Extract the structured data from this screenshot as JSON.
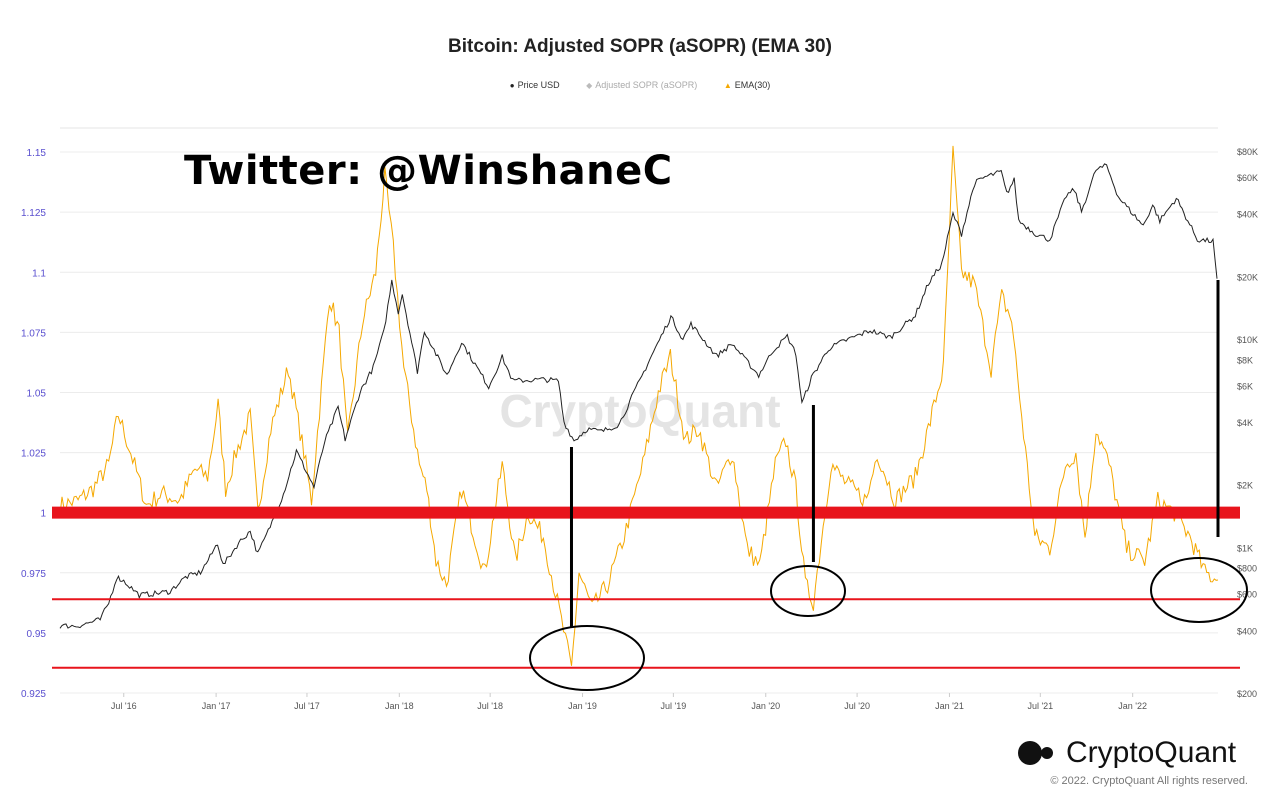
{
  "chart_data": {
    "type": "line",
    "title": "Bitcoin: Adjusted SOPR (aSOPR) (EMA 30)",
    "legend": [
      {
        "name": "Price USD",
        "color": "#222222",
        "marker": "circle"
      },
      {
        "name": "Adjusted SOPR (aSOPR)",
        "color": "#bbbbbb",
        "marker": "diamond"
      },
      {
        "name": "EMA(30)",
        "color": "#f5a800",
        "marker": "triangle"
      }
    ],
    "legend_position": "top-center",
    "watermark": "CryptoQuant",
    "x_ticks": [
      "Jul '16",
      "Jan '17",
      "Jul '17",
      "Jan '18",
      "Jul '18",
      "Jan '19",
      "Jul '19",
      "Jan '20",
      "Jul '20",
      "Jan '21",
      "Jul '21",
      "Jan '22"
    ],
    "x_range": [
      "2016-02-25",
      "2022-06-20"
    ],
    "y_left": {
      "ticks": [
        "1.15",
        "1.125",
        "1.1",
        "1.075",
        "1.05",
        "1.025",
        "1",
        "0.975",
        "0.95",
        "0.925"
      ],
      "range": [
        0.925,
        1.16
      ]
    },
    "y_right": {
      "scale": "log",
      "ticks": [
        {
          "label": "$80K",
          "value": 80000
        },
        {
          "label": "$60K",
          "value": 60000
        },
        {
          "label": "$40K",
          "value": 40000
        },
        {
          "label": "$20K",
          "value": 20000
        },
        {
          "label": "$10K",
          "value": 10000
        },
        {
          "label": "$8K",
          "value": 8000
        },
        {
          "label": "$6K",
          "value": 6000
        },
        {
          "label": "$4K",
          "value": 4000
        },
        {
          "label": "$2K",
          "value": 2000
        },
        {
          "label": "$1K",
          "value": 1000
        },
        {
          "label": "$800",
          "value": 800
        },
        {
          "label": "$600",
          "value": 600
        },
        {
          "label": "$400",
          "value": 400
        },
        {
          "label": "$200",
          "value": 200
        }
      ],
      "range": [
        200,
        80000
      ]
    },
    "series": [
      {
        "name": "Price USD",
        "axis": "right",
        "color": "#222222",
        "points": [
          [
            "2016-02-25",
            420
          ],
          [
            "2016-04-01",
            420
          ],
          [
            "2016-05-15",
            450
          ],
          [
            "2016-06-01",
            540
          ],
          [
            "2016-06-17",
            720
          ],
          [
            "2016-07-01",
            690
          ],
          [
            "2016-08-01",
            590
          ],
          [
            "2016-09-01",
            600
          ],
          [
            "2016-10-01",
            615
          ],
          [
            "2016-11-01",
            720
          ],
          [
            "2016-12-01",
            760
          ],
          [
            "2016-12-20",
            900
          ],
          [
            "2017-01-04",
            1050
          ],
          [
            "2017-01-15",
            820
          ],
          [
            "2017-02-15",
            1050
          ],
          [
            "2017-03-10",
            1200
          ],
          [
            "2017-03-25",
            930
          ],
          [
            "2017-04-15",
            1200
          ],
          [
            "2017-05-15",
            1800
          ],
          [
            "2017-06-10",
            2900
          ],
          [
            "2017-07-15",
            1950
          ],
          [
            "2017-08-05",
            3200
          ],
          [
            "2017-09-01",
            4700
          ],
          [
            "2017-09-15",
            3300
          ],
          [
            "2017-10-15",
            5600
          ],
          [
            "2017-11-10",
            7300
          ],
          [
            "2017-12-01",
            10800
          ],
          [
            "2017-12-17",
            19000
          ],
          [
            "2017-12-30",
            13500
          ],
          [
            "2018-01-07",
            16500
          ],
          [
            "2018-02-06",
            7000
          ],
          [
            "2018-02-20",
            11000
          ],
          [
            "2018-03-15",
            8500
          ],
          [
            "2018-04-06",
            6700
          ],
          [
            "2018-05-05",
            9700
          ],
          [
            "2018-06-28",
            5900
          ],
          [
            "2018-07-25",
            8200
          ],
          [
            "2018-08-15",
            6300
          ],
          [
            "2018-10-15",
            6400
          ],
          [
            "2018-11-14",
            6300
          ],
          [
            "2018-11-25",
            4000
          ],
          [
            "2018-12-15",
            3250
          ],
          [
            "2019-01-10",
            3700
          ],
          [
            "2019-02-08",
            3600
          ],
          [
            "2019-03-15",
            3900
          ],
          [
            "2019-04-05",
            5000
          ],
          [
            "2019-05-15",
            8000
          ],
          [
            "2019-06-26",
            12800
          ],
          [
            "2019-07-20",
            10000
          ],
          [
            "2019-08-05",
            11800
          ],
          [
            "2019-09-25",
            8300
          ],
          [
            "2019-10-26",
            9500
          ],
          [
            "2019-12-18",
            6700
          ],
          [
            "2020-01-15",
            8800
          ],
          [
            "2020-02-13",
            10300
          ],
          [
            "2020-03-01",
            8500
          ],
          [
            "2020-03-13",
            4900
          ],
          [
            "2020-04-01",
            6500
          ],
          [
            "2020-05-05",
            9000
          ],
          [
            "2020-06-01",
            9700
          ],
          [
            "2020-07-27",
            11000
          ],
          [
            "2020-09-05",
            10200
          ],
          [
            "2020-10-25",
            13000
          ],
          [
            "2020-11-20",
            18500
          ],
          [
            "2020-12-17",
            23000
          ],
          [
            "2021-01-08",
            40000
          ],
          [
            "2021-01-25",
            32000
          ],
          [
            "2021-02-20",
            56000
          ],
          [
            "2021-03-13",
            60000
          ],
          [
            "2021-04-14",
            63500
          ],
          [
            "2021-04-25",
            50000
          ],
          [
            "2021-05-10",
            58000
          ],
          [
            "2021-05-19",
            37000
          ],
          [
            "2021-06-22",
            32000
          ],
          [
            "2021-07-20",
            30000
          ],
          [
            "2021-08-22",
            49000
          ],
          [
            "2021-09-07",
            52000
          ],
          [
            "2021-09-21",
            41000
          ],
          [
            "2021-10-20",
            65000
          ],
          [
            "2021-11-10",
            68000
          ],
          [
            "2021-12-04",
            48000
          ],
          [
            "2022-01-22",
            35000
          ],
          [
            "2022-02-10",
            44000
          ],
          [
            "2022-02-24",
            37000
          ],
          [
            "2022-03-29",
            47500
          ],
          [
            "2022-05-10",
            30000
          ],
          [
            "2022-06-10",
            29500
          ],
          [
            "2022-06-18",
            19500
          ]
        ]
      },
      {
        "name": "EMA(30)",
        "axis": "left",
        "color": "#f5a800",
        "points": [
          [
            "2016-02-25",
            1.003
          ],
          [
            "2016-04-01",
            1.005
          ],
          [
            "2016-05-01",
            1.01
          ],
          [
            "2016-06-01",
            1.02
          ],
          [
            "2016-06-20",
            1.041
          ],
          [
            "2016-07-15",
            1.025
          ],
          [
            "2016-08-15",
            1.003
          ],
          [
            "2016-09-15",
            1.008
          ],
          [
            "2016-10-20",
            1.005
          ],
          [
            "2016-11-20",
            1.018
          ],
          [
            "2016-12-15",
            1.015
          ],
          [
            "2017-01-05",
            1.045
          ],
          [
            "2017-01-20",
            1.01
          ],
          [
            "2017-02-10",
            1.025
          ],
          [
            "2017-03-10",
            1.04
          ],
          [
            "2017-03-25",
            1.0
          ],
          [
            "2017-04-20",
            1.035
          ],
          [
            "2017-05-25",
            1.06
          ],
          [
            "2017-06-25",
            1.025
          ],
          [
            "2017-07-10",
            1.005
          ],
          [
            "2017-08-15",
            1.09
          ],
          [
            "2017-09-03",
            1.075
          ],
          [
            "2017-09-20",
            1.03
          ],
          [
            "2017-10-20",
            1.08
          ],
          [
            "2017-11-15",
            1.1
          ],
          [
            "2017-12-03",
            1.14
          ],
          [
            "2017-12-20",
            1.11
          ],
          [
            "2018-01-10",
            1.06
          ],
          [
            "2018-02-10",
            1.02
          ],
          [
            "2018-02-25",
            1.01
          ],
          [
            "2018-03-15",
            0.98
          ],
          [
            "2018-04-05",
            0.97
          ],
          [
            "2018-05-05",
            1.01
          ],
          [
            "2018-06-20",
            0.975
          ],
          [
            "2018-07-25",
            1.02
          ],
          [
            "2018-08-20",
            0.98
          ],
          [
            "2018-09-15",
            1.0
          ],
          [
            "2018-10-15",
            0.99
          ],
          [
            "2018-11-20",
            0.955
          ],
          [
            "2018-12-10",
            0.935
          ],
          [
            "2018-12-25",
            0.975
          ],
          [
            "2019-01-20",
            0.96
          ],
          [
            "2019-02-20",
            0.97
          ],
          [
            "2019-03-25",
            0.99
          ],
          [
            "2019-05-01",
            1.02
          ],
          [
            "2019-06-01",
            1.05
          ],
          [
            "2019-06-25",
            1.065
          ],
          [
            "2019-07-25",
            1.03
          ],
          [
            "2019-08-20",
            1.035
          ],
          [
            "2019-09-25",
            1.01
          ],
          [
            "2019-10-26",
            1.025
          ],
          [
            "2019-11-25",
            0.985
          ],
          [
            "2019-12-20",
            0.978
          ],
          [
            "2020-01-20",
            1.02
          ],
          [
            "2020-02-10",
            1.03
          ],
          [
            "2020-03-01",
            1.01
          ],
          [
            "2020-03-20",
            0.97
          ],
          [
            "2020-04-05",
            0.963
          ],
          [
            "2020-05-10",
            1.02
          ],
          [
            "2020-06-10",
            1.012
          ],
          [
            "2020-07-20",
            1.005
          ],
          [
            "2020-08-10",
            1.025
          ],
          [
            "2020-09-15",
            1.005
          ],
          [
            "2020-10-25",
            1.015
          ],
          [
            "2020-11-20",
            1.035
          ],
          [
            "2020-12-20",
            1.06
          ],
          [
            "2021-01-08",
            1.15
          ],
          [
            "2021-01-25",
            1.1
          ],
          [
            "2021-02-20",
            1.095
          ],
          [
            "2021-03-25",
            1.06
          ],
          [
            "2021-04-15",
            1.09
          ],
          [
            "2021-05-05",
            1.08
          ],
          [
            "2021-05-25",
            1.04
          ],
          [
            "2021-06-20",
            0.99
          ],
          [
            "2021-07-20",
            0.985
          ],
          [
            "2021-08-20",
            1.02
          ],
          [
            "2021-09-10",
            1.025
          ],
          [
            "2021-09-28",
            0.99
          ],
          [
            "2021-10-20",
            1.035
          ],
          [
            "2021-11-15",
            1.02
          ],
          [
            "2021-12-20",
            0.985
          ],
          [
            "2022-01-25",
            0.98
          ],
          [
            "2022-02-20",
            1.005
          ],
          [
            "2022-03-25",
            1.0
          ],
          [
            "2022-04-25",
            0.99
          ],
          [
            "2022-05-25",
            0.975
          ],
          [
            "2022-06-20",
            0.972
          ]
        ]
      }
    ],
    "annotations": {
      "twitter_handle": "Twitter: @WinshaneC",
      "horizontal_lines": [
        1.0,
        0.964,
        0.9355
      ],
      "circled_lows": [
        "2018-12-10",
        "2020-04-05",
        "2022-05-20"
      ],
      "vertical_markers": [
        "2018-12-10",
        "2020-04-05",
        "2022-06-20"
      ]
    }
  },
  "brand": {
    "name": "CryptoQuant",
    "copyright": "© 2022. CryptoQuant All rights reserved."
  }
}
